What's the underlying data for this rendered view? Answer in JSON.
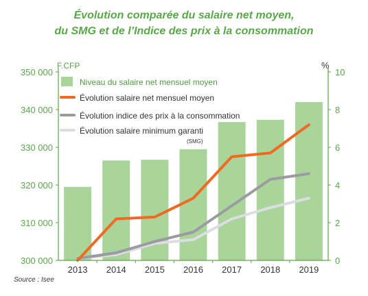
{
  "chart_data": {
    "type": "bar",
    "title_line1": "Évolution comparée du salaire net moyen,",
    "title_line2": "du SMG et de l’Indice des prix à la consommation",
    "left_unit": "F.CFP",
    "right_unit": "%",
    "categories": [
      "2013",
      "2014",
      "2015",
      "2016",
      "2017",
      "2018",
      "2019"
    ],
    "ylim_left": [
      300000,
      350000
    ],
    "yticks_left": [
      "300 000",
      "310 000",
      "320 000",
      "330 000",
      "340 000",
      "350 000"
    ],
    "ylim_right": [
      0,
      10
    ],
    "yticks_right": [
      "0",
      "2",
      "4",
      "6",
      "8",
      "10"
    ],
    "grid": false,
    "legend_position": "top-left",
    "bars": {
      "name": "Niveau du salaire net mensuel moyen",
      "axis": "left",
      "color": "#a9d59b",
      "values": [
        319500,
        326500,
        326700,
        329500,
        336700,
        337300,
        342000
      ]
    },
    "series": [
      {
        "name": "Évolution salaire net mensuel moyen",
        "axis": "right",
        "color": "#f26a21",
        "values": [
          0,
          2.2,
          2.3,
          3.3,
          5.5,
          5.7,
          7.2
        ]
      },
      {
        "name": "Évolution indice des prix à la consommation",
        "axis": "right",
        "color": "#9b9ba0",
        "values": [
          0.1,
          0.4,
          1.0,
          1.5,
          2.9,
          4.3,
          4.6
        ]
      },
      {
        "name": "Évolution salaire minimum garanti",
        "name_note": "(SMG)",
        "axis": "right",
        "color": "#dcdde1",
        "values": [
          0.1,
          0.3,
          0.9,
          1.1,
          2.2,
          2.8,
          3.3
        ]
      }
    ],
    "source": "Source : Isee"
  }
}
